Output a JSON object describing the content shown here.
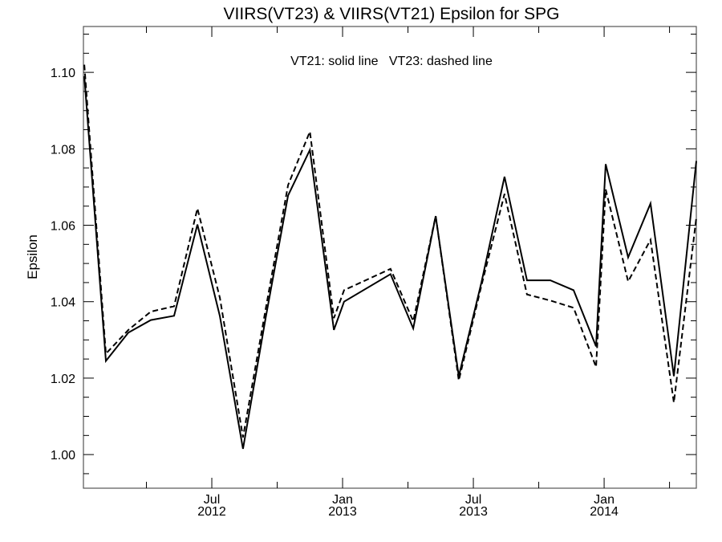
{
  "chart_data": {
    "type": "line",
    "title": "VIIRS(VT23) & VIIRS(VT21)  Epsilon for SPG",
    "annotation": "VT21: solid line   VT23: dashed line",
    "xlabel": "",
    "ylabel": "Epsilon",
    "x_units": "months since Jan 2012",
    "xlim": [
      0.11,
      28.23
    ],
    "ylim": [
      0.9912,
      1.112
    ],
    "grid": false,
    "y_ticks": [
      1.0,
      1.02,
      1.04,
      1.06,
      1.08,
      1.1
    ],
    "y_tick_labels": [
      "1.00",
      "1.02",
      "1.04",
      "1.06",
      "1.08",
      "1.10"
    ],
    "y_minor_step": 0.005,
    "x_minor_step_months": 3,
    "x_ticks": [
      {
        "month": 6,
        "label1": "Jul",
        "label2": "2012"
      },
      {
        "month": 12,
        "label1": "Jan",
        "label2": "2013"
      },
      {
        "month": 18,
        "label1": "Jul",
        "label2": "2013"
      },
      {
        "month": 24,
        "label1": "Jan",
        "label2": "2014"
      }
    ],
    "x": [
      0.15,
      1.14,
      2.17,
      3.2,
      4.27,
      5.34,
      6.37,
      7.43,
      8.47,
      9.5,
      10.5,
      11.6,
      12.07,
      14.2,
      15.24,
      16.27,
      17.33,
      18.37,
      19.43,
      20.46,
      21.53,
      22.6,
      23.63,
      24.07,
      25.1,
      26.13,
      27.2,
      28.23
    ],
    "series": [
      {
        "name": "VT21",
        "style": "solid",
        "values": [
          1.099,
          1.0245,
          1.0319,
          1.0352,
          1.0363,
          1.0602,
          1.0362,
          1.0015,
          1.0357,
          1.0678,
          1.0797,
          1.0326,
          1.04,
          1.0472,
          1.033,
          1.0624,
          1.0205,
          1.045,
          1.0727,
          1.0456,
          1.0456,
          1.043,
          1.0283,
          1.076,
          1.0516,
          1.0657,
          1.0205,
          1.0768
        ]
      },
      {
        "name": "VT23",
        "style": "dashed",
        "values": [
          1.102,
          1.0264,
          1.0326,
          1.0374,
          1.0388,
          1.0644,
          1.041,
          1.0045,
          1.038,
          1.0705,
          1.0845,
          1.0357,
          1.043,
          1.0486,
          1.0349,
          1.0624,
          1.0194,
          1.0442,
          1.0682,
          1.0419,
          1.0403,
          1.0384,
          1.0229,
          1.0694,
          1.0453,
          1.0562,
          1.0136,
          1.062
        ]
      }
    ]
  }
}
